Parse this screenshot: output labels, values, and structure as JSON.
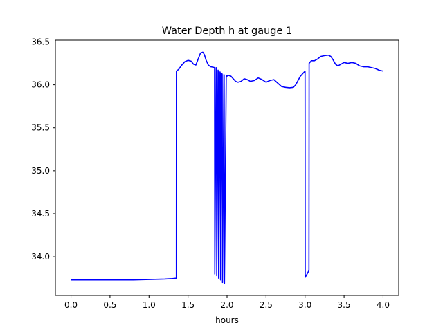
{
  "chart_data": {
    "type": "line",
    "title": "Water Depth h at gauge 1",
    "xlabel": "hours",
    "ylabel": "",
    "xlim": [
      -0.2,
      4.2
    ],
    "ylim": [
      33.55,
      36.52
    ],
    "xticks": [
      0.0,
      0.5,
      1.0,
      1.5,
      2.0,
      2.5,
      3.0,
      3.5,
      4.0
    ],
    "xtick_labels": [
      "0.0",
      "0.5",
      "1.0",
      "1.5",
      "2.0",
      "2.5",
      "3.0",
      "3.5",
      "4.0"
    ],
    "yticks": [
      34.0,
      34.5,
      35.0,
      35.5,
      36.0,
      36.5
    ],
    "ytick_labels": [
      "34.0",
      "34.5",
      "35.0",
      "35.5",
      "36.0",
      "36.5"
    ],
    "grid": false,
    "series": [
      {
        "color": "#0000ff",
        "x": [
          0.0,
          0.5,
          0.8,
          1.0,
          1.2,
          1.3,
          1.35,
          1.351,
          1.38,
          1.42,
          1.46,
          1.5,
          1.54,
          1.57,
          1.6,
          1.63,
          1.66,
          1.69,
          1.71,
          1.73,
          1.76,
          1.79,
          1.82,
          1.84,
          1.843,
          1.86,
          1.863,
          1.868,
          1.885,
          1.888,
          1.892,
          1.91,
          1.913,
          1.917,
          1.935,
          1.938,
          1.942,
          1.96,
          1.963,
          1.967,
          1.99,
          1.993,
          1.998,
          2.02,
          2.05,
          2.08,
          2.11,
          2.14,
          2.18,
          2.22,
          2.26,
          2.3,
          2.35,
          2.4,
          2.45,
          2.5,
          2.55,
          2.6,
          2.65,
          2.7,
          2.75,
          2.8,
          2.85,
          2.88,
          2.91,
          2.94,
          2.97,
          3.0,
          3.002,
          3.05,
          3.052,
          3.08,
          3.12,
          3.16,
          3.2,
          3.25,
          3.3,
          3.33,
          3.36,
          3.39,
          3.42,
          3.46,
          3.5,
          3.55,
          3.6,
          3.65,
          3.7,
          3.75,
          3.8,
          3.85,
          3.9,
          3.95,
          4.0
        ],
        "y": [
          33.73,
          33.73,
          33.73,
          33.735,
          33.74,
          33.745,
          33.75,
          36.16,
          36.18,
          36.23,
          36.27,
          36.285,
          36.275,
          36.24,
          36.23,
          36.3,
          36.37,
          36.38,
          36.35,
          36.29,
          36.23,
          36.21,
          36.205,
          36.2,
          33.8,
          36.2,
          36.19,
          33.78,
          36.17,
          36.16,
          33.75,
          36.15,
          36.14,
          33.73,
          36.13,
          36.12,
          33.7,
          36.12,
          36.11,
          33.69,
          36.1,
          36.11,
          36.1,
          36.11,
          36.1,
          36.07,
          36.04,
          36.03,
          36.04,
          36.07,
          36.06,
          36.04,
          36.05,
          36.08,
          36.06,
          36.03,
          36.05,
          36.06,
          36.02,
          35.98,
          35.97,
          35.965,
          35.97,
          36.0,
          36.05,
          36.1,
          36.13,
          36.16,
          33.76,
          33.84,
          36.25,
          36.28,
          36.28,
          36.3,
          36.33,
          36.34,
          36.345,
          36.33,
          36.29,
          36.24,
          36.22,
          36.24,
          36.26,
          36.25,
          36.26,
          36.25,
          36.22,
          36.21,
          36.21,
          36.2,
          36.19,
          36.17,
          36.16
        ]
      }
    ]
  }
}
